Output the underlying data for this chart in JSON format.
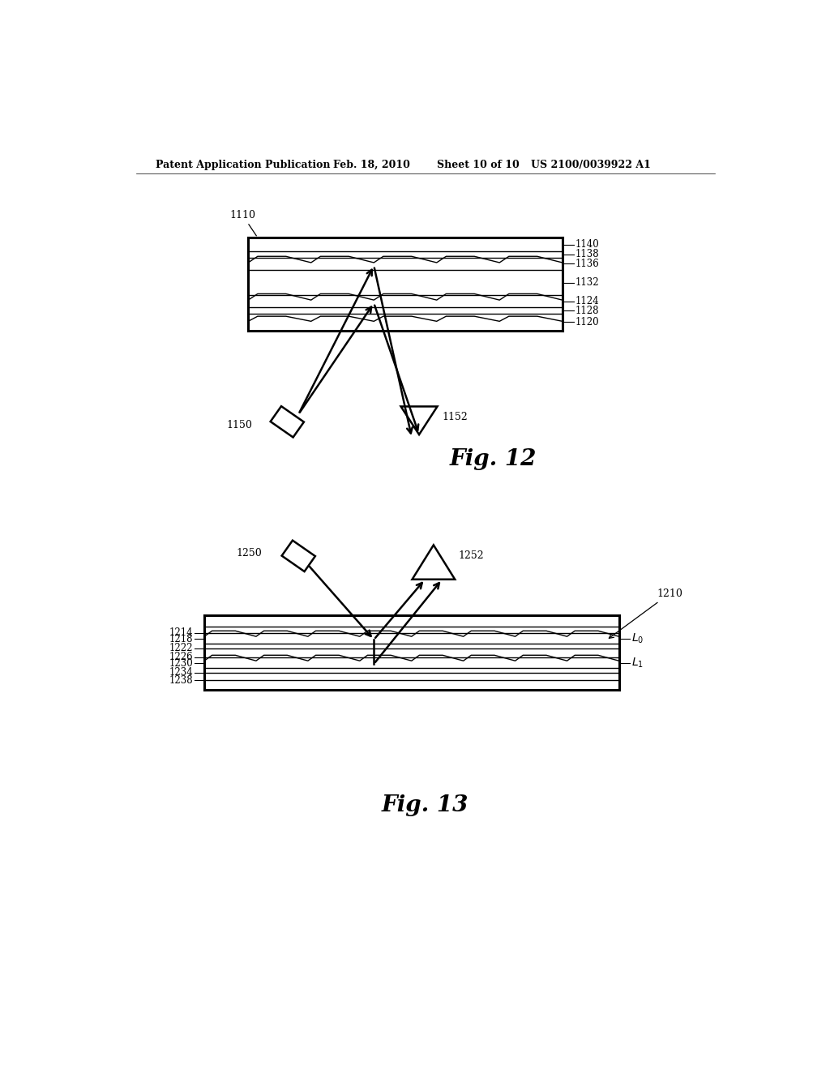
{
  "bg_color": "#ffffff",
  "header_text": "Patent Application Publication",
  "header_date": "Feb. 18, 2010",
  "header_sheet": "Sheet 10 of 10",
  "header_patent": "US 2100/0039922 A1",
  "fig12_label": "Fig. 12",
  "fig13_label": "Fig. 13",
  "line_color": "#000000",
  "lw_thin": 1.0,
  "lw_thick": 1.8,
  "lw_outer": 2.2
}
